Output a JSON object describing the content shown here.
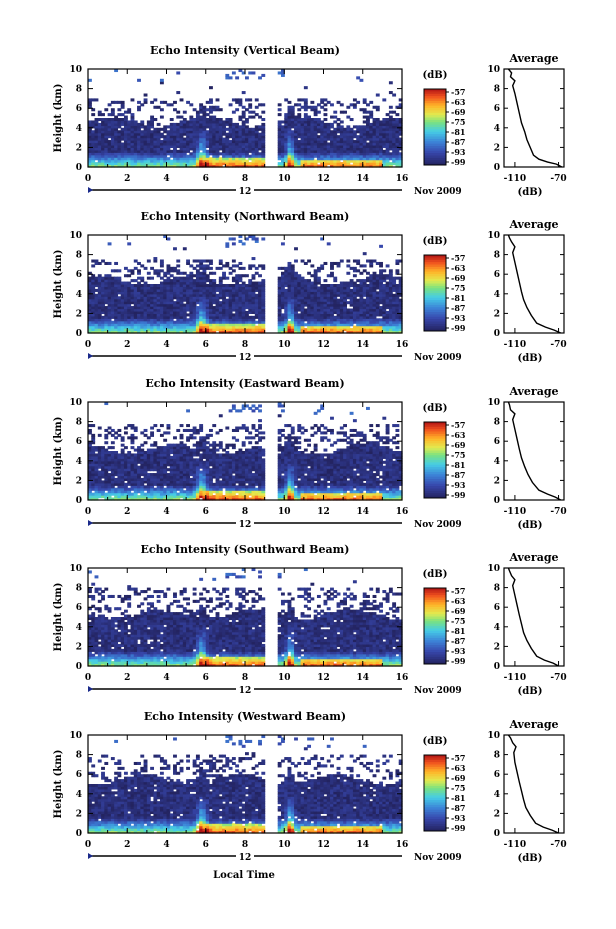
{
  "figure": {
    "xlabel": "Local Time",
    "date_label": "Nov 2009",
    "date_marker": "12",
    "ylabel": "Height (km)",
    "colorbar_unit": "(dB)",
    "average_title": "Average",
    "average_xlabel": "(dB)"
  },
  "chart_data": [
    {
      "type": "heatmap",
      "title": "Echo Intensity (Vertical Beam)",
      "xlim": [
        0,
        16
      ],
      "ylim": [
        0,
        10
      ],
      "xticks": [
        "0",
        "2",
        "4",
        "6",
        "8",
        "10",
        "12",
        "14",
        "16"
      ],
      "yticks": [
        "0",
        "2",
        "4",
        "6",
        "8",
        "10"
      ],
      "colorbar_ticks": [
        "-57",
        "-63",
        "-69",
        "-75",
        "-81",
        "-87",
        "-93",
        "-99"
      ],
      "gap": [
        9.0,
        9.6
      ],
      "echo_top_km": 4.6,
      "sparse_top_km": 7.0,
      "average_profile": {
        "xlim": [
          -120,
          -65
        ],
        "xticks": [
          "-110",
          "-70"
        ],
        "points": [
          [
            -67,
            0
          ],
          [
            -72,
            0.3
          ],
          [
            -80,
            0.5
          ],
          [
            -88,
            0.8
          ],
          [
            -93,
            1.2
          ],
          [
            -96,
            2
          ],
          [
            -99,
            2.8
          ],
          [
            -101,
            3.6
          ],
          [
            -104,
            4.5
          ],
          [
            -106,
            5.5
          ],
          [
            -108,
            6.5
          ],
          [
            -110,
            7.5
          ],
          [
            -112,
            8.3
          ],
          [
            -110,
            8.8
          ],
          [
            -114,
            9.2
          ],
          [
            -113,
            9.6
          ],
          [
            -116,
            10
          ]
        ]
      }
    },
    {
      "type": "heatmap",
      "title": "Echo Intensity (Northward Beam)",
      "xlim": [
        0,
        16
      ],
      "ylim": [
        0,
        10
      ],
      "xticks": [
        "0",
        "2",
        "4",
        "6",
        "8",
        "10",
        "12",
        "14",
        "16"
      ],
      "yticks": [
        "0",
        "2",
        "4",
        "6",
        "8",
        "10"
      ],
      "colorbar_ticks": [
        "-57",
        "-63",
        "-69",
        "-75",
        "-81",
        "-87",
        "-93",
        "-99"
      ],
      "gap": [
        9.0,
        9.6
      ],
      "echo_top_km": 5.4,
      "sparse_top_km": 7.5,
      "average_profile": {
        "xlim": [
          -120,
          -65
        ],
        "xticks": [
          "-110",
          "-70"
        ],
        "points": [
          [
            -68,
            0
          ],
          [
            -74,
            0.3
          ],
          [
            -82,
            0.6
          ],
          [
            -90,
            1
          ],
          [
            -95,
            1.8
          ],
          [
            -99,
            2.6
          ],
          [
            -102,
            3.4
          ],
          [
            -104,
            4.2
          ],
          [
            -106,
            5.2
          ],
          [
            -108,
            6.2
          ],
          [
            -110,
            7.2
          ],
          [
            -112,
            8.2
          ],
          [
            -110,
            8.8
          ],
          [
            -113,
            9.3
          ],
          [
            -115,
            9.7
          ],
          [
            -116,
            10
          ]
        ]
      }
    },
    {
      "type": "heatmap",
      "title": "Echo Intensity (Eastward Beam)",
      "xlim": [
        0,
        16
      ],
      "ylim": [
        0,
        10
      ],
      "xticks": [
        "0",
        "2",
        "4",
        "6",
        "8",
        "10",
        "12",
        "14",
        "16"
      ],
      "yticks": [
        "0",
        "2",
        "4",
        "6",
        "8",
        "10"
      ],
      "colorbar_ticks": [
        "-57",
        "-63",
        "-69",
        "-75",
        "-81",
        "-87",
        "-93",
        "-99"
      ],
      "gap": [
        9.0,
        9.6
      ],
      "echo_top_km": 5.2,
      "sparse_top_km": 7.8,
      "average_profile": {
        "xlim": [
          -120,
          -65
        ],
        "xticks": [
          "-110",
          "-70"
        ],
        "points": [
          [
            -68,
            0
          ],
          [
            -73,
            0.3
          ],
          [
            -80,
            0.6
          ],
          [
            -88,
            1
          ],
          [
            -94,
            1.8
          ],
          [
            -98,
            2.6
          ],
          [
            -101,
            3.4
          ],
          [
            -104,
            4.3
          ],
          [
            -106,
            5.2
          ],
          [
            -108,
            6.2
          ],
          [
            -110,
            7.2
          ],
          [
            -112,
            8.2
          ],
          [
            -110,
            8.8
          ],
          [
            -114,
            9.2
          ],
          [
            -115,
            9.7
          ],
          [
            -116,
            10
          ]
        ]
      }
    },
    {
      "type": "heatmap",
      "title": "Echo Intensity (Southward Beam)",
      "xlim": [
        0,
        16
      ],
      "ylim": [
        0,
        10
      ],
      "xticks": [
        "0",
        "2",
        "4",
        "6",
        "8",
        "10",
        "12",
        "14",
        "16"
      ],
      "yticks": [
        "0",
        "2",
        "4",
        "6",
        "8",
        "10"
      ],
      "colorbar_ticks": [
        "-57",
        "-63",
        "-69",
        "-75",
        "-81",
        "-87",
        "-93",
        "-99"
      ],
      "gap": [
        9.0,
        9.6
      ],
      "echo_top_km": 5.3,
      "sparse_top_km": 8.0,
      "average_profile": {
        "xlim": [
          -120,
          -65
        ],
        "xticks": [
          "-110",
          "-70"
        ],
        "points": [
          [
            -70,
            0
          ],
          [
            -75,
            0.3
          ],
          [
            -83,
            0.6
          ],
          [
            -90,
            1
          ],
          [
            -95,
            1.8
          ],
          [
            -99,
            2.6
          ],
          [
            -102,
            3.4
          ],
          [
            -104,
            4.3
          ],
          [
            -106,
            5.2
          ],
          [
            -108,
            6.2
          ],
          [
            -110,
            7.2
          ],
          [
            -112,
            8.2
          ],
          [
            -110,
            8.8
          ],
          [
            -113,
            9.2
          ],
          [
            -115,
            9.7
          ],
          [
            -116,
            10
          ]
        ]
      }
    },
    {
      "type": "heatmap",
      "title": "Echo Intensity (Westward Beam)",
      "xlim": [
        0,
        16
      ],
      "ylim": [
        0,
        10
      ],
      "xticks": [
        "0",
        "2",
        "4",
        "6",
        "8",
        "10",
        "12",
        "14",
        "16"
      ],
      "yticks": [
        "0",
        "2",
        "4",
        "6",
        "8",
        "10"
      ],
      "colorbar_ticks": [
        "-57",
        "-63",
        "-69",
        "-75",
        "-81",
        "-87",
        "-93",
        "-99"
      ],
      "gap": [
        9.0,
        9.6
      ],
      "echo_top_km": 5.5,
      "sparse_top_km": 8.0,
      "average_profile": {
        "xlim": [
          -120,
          -65
        ],
        "xticks": [
          "-110",
          "-70"
        ],
        "points": [
          [
            -70,
            0
          ],
          [
            -76,
            0.3
          ],
          [
            -84,
            0.6
          ],
          [
            -91,
            1
          ],
          [
            -96,
            1.8
          ],
          [
            -100,
            2.6
          ],
          [
            -102,
            3.4
          ],
          [
            -104,
            4.3
          ],
          [
            -106,
            5.2
          ],
          [
            -108,
            6.2
          ],
          [
            -110,
            7.2
          ],
          [
            -111,
            8.2
          ],
          [
            -109,
            8.8
          ],
          [
            -112,
            9.2
          ],
          [
            -114,
            9.7
          ],
          [
            -116,
            10
          ]
        ]
      }
    }
  ]
}
